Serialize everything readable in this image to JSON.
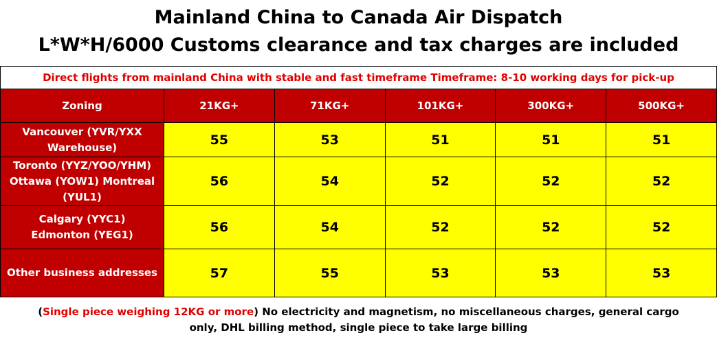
{
  "header": {
    "title": "Mainland China to Canada Air Dispatch",
    "subtitle": "L*W*H/6000  Customs clearance and tax charges are included"
  },
  "notice": "Direct flights from mainland China with stable and fast timeframe    Timeframe: 8-10 working days for pick-up",
  "table": {
    "columns": [
      "Zoning",
      "21KG+",
      "71KG+",
      "101KG+",
      "300KG+",
      "500KG+"
    ],
    "rows": [
      {
        "zone": [
          "Vancouver (YVR/YXX",
          "Warehouse)"
        ],
        "prices": [
          55,
          53,
          51,
          51,
          51
        ]
      },
      {
        "zone": [
          "Toronto (YYZ/YOO/YHM)",
          "Ottawa (YOW1) Montreal",
          "(YUL1)"
        ],
        "prices": [
          56,
          54,
          52,
          52,
          52
        ]
      },
      {
        "zone": [
          "Calgary (YYC1)",
          "Edmonton (YEG1)"
        ],
        "prices": [
          56,
          54,
          52,
          52,
          52
        ]
      },
      {
        "zone": [
          "Other business addresses"
        ],
        "prices": [
          57,
          55,
          53,
          53,
          53
        ]
      }
    ]
  },
  "footer": {
    "parts": [
      "(",
      "Single piece weighing 12KG or more",
      ") No electricity and magnetism, no miscellaneous charges, general cargo only, DHL billing method, single piece to take large billing"
    ]
  }
}
